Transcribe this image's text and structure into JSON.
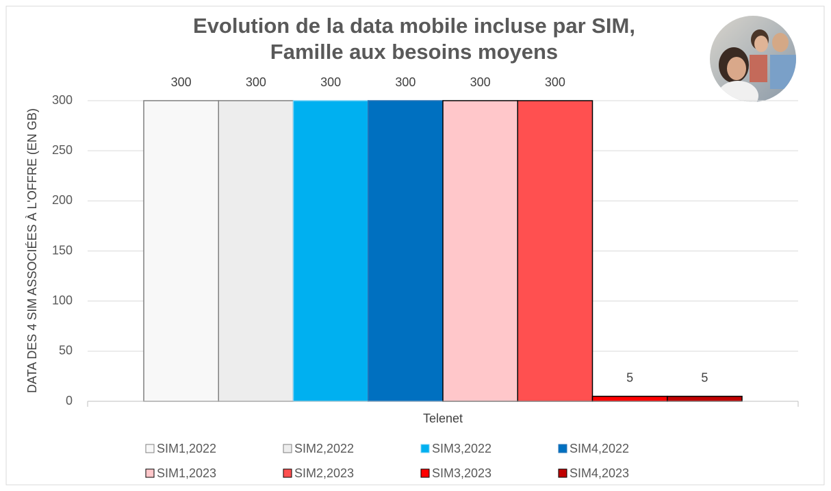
{
  "chart_data": {
    "type": "bar",
    "title": [
      "Evolution de la data mobile incluse par SIM,",
      "Famille aux besoins moyens"
    ],
    "y_label": "DATA DES 4 SIM ASSOCIÉES À L'OFFRE (EN GB)",
    "categories": [
      "Telenet"
    ],
    "series": [
      {
        "name": "SIM1,2022",
        "color": "#f8f8f8",
        "border": "#7f7f7f",
        "values": [
          300
        ]
      },
      {
        "name": "SIM2,2022",
        "color": "#ededed",
        "border": "#7f7f7f",
        "values": [
          300
        ]
      },
      {
        "name": "SIM3,2022",
        "color": "#00b0f0",
        "border": "#7fd3f5",
        "values": [
          300
        ]
      },
      {
        "name": "SIM4,2022",
        "color": "#0070c0",
        "border": "#2e75b6",
        "values": [
          300
        ]
      },
      {
        "name": "SIM1,2023",
        "color": "#ffc7ca",
        "border": "#000000",
        "values": [
          300
        ]
      },
      {
        "name": "SIM2,2023",
        "color": "#ff5050",
        "border": "#000000",
        "values": [
          300
        ]
      },
      {
        "name": "SIM3,2023",
        "color": "#ff0000",
        "border": "#000000",
        "values": [
          5
        ]
      },
      {
        "name": "SIM4,2023",
        "color": "#c00000",
        "border": "#000000",
        "values": [
          5
        ]
      }
    ],
    "ylim": [
      0,
      300
    ],
    "yticks": [
      0,
      50,
      100,
      150,
      200,
      250,
      300
    ],
    "grid": true,
    "legend": "bottom",
    "data_labels": true
  }
}
